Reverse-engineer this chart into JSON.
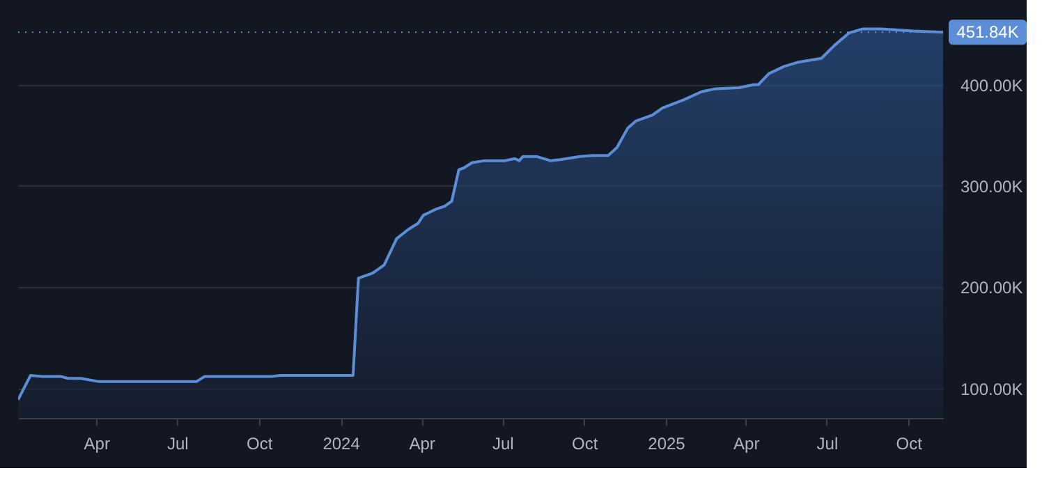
{
  "chart_data": {
    "type": "area",
    "x": [
      "2023-01-03",
      "2023-01-17",
      "2023-01-29",
      "2023-02-20",
      "2023-02-28",
      "2023-03-15",
      "2023-03-21",
      "2023-04-03",
      "2023-05-19",
      "2023-07-23",
      "2023-08-01",
      "2023-10-16",
      "2023-10-25",
      "2024-01-15",
      "2024-01-21",
      "2024-02-06",
      "2024-02-19",
      "2024-03-04",
      "2024-03-17",
      "2024-03-28",
      "2024-04-03",
      "2024-04-17",
      "2024-04-27",
      "2024-05-05",
      "2024-05-13",
      "2024-05-19",
      "2024-05-28",
      "2024-06-11",
      "2024-07-04",
      "2024-07-15",
      "2024-07-20",
      "2024-07-24",
      "2024-08-09",
      "2024-08-24",
      "2024-09-04",
      "2024-09-26",
      "2024-10-10",
      "2024-10-28",
      "2024-11-07",
      "2024-11-19",
      "2024-11-28",
      "2024-12-17",
      "2024-12-28",
      "2025-01-21",
      "2025-02-10",
      "2025-02-26",
      "2025-03-24",
      "2025-04-10",
      "2025-04-15",
      "2025-04-27",
      "2025-05-14",
      "2025-05-29",
      "2025-06-25",
      "2025-07-10",
      "2025-07-26",
      "2025-08-10",
      "2025-09-01",
      "2025-10-06",
      "2025-11-09"
    ],
    "series": [
      {
        "color": "#5b8ed6",
        "values": [
          89000,
          113000,
          112000,
          112000,
          110000,
          110000,
          109000,
          107000,
          107000,
          107000,
          112000,
          112000,
          113000,
          113000,
          209000,
          214000,
          222000,
          248000,
          257000,
          263000,
          271000,
          277000,
          280000,
          285000,
          316000,
          318000,
          323000,
          325000,
          325000,
          327000,
          325000,
          329000,
          329000,
          325000,
          326000,
          329000,
          330000,
          330000,
          338000,
          357000,
          364000,
          370000,
          377000,
          385000,
          393000,
          396000,
          397000,
          400000,
          400000,
          411000,
          418000,
          422000,
          426000,
          439000,
          451000,
          455000,
          455000,
          453000,
          451840
        ]
      }
    ],
    "xlim": [
      "2023-01-03",
      "2025-11-09"
    ],
    "xticks": [
      {
        "value": "2023-04-01",
        "label": "Apr"
      },
      {
        "value": "2023-07-01",
        "label": "Jul"
      },
      {
        "value": "2023-10-01",
        "label": "Oct"
      },
      {
        "value": "2024-01-01",
        "label": "2024"
      },
      {
        "value": "2024-04-01",
        "label": "Apr"
      },
      {
        "value": "2024-07-01",
        "label": "Jul"
      },
      {
        "value": "2024-10-01",
        "label": "Oct"
      },
      {
        "value": "2025-01-01",
        "label": "2025"
      },
      {
        "value": "2025-04-01",
        "label": "Apr"
      },
      {
        "value": "2025-07-01",
        "label": "Jul"
      },
      {
        "value": "2025-10-01",
        "label": "Oct"
      }
    ],
    "ylim": [
      71000,
      483600
    ],
    "yticks": [
      {
        "value": 100000,
        "label": "100.00K"
      },
      {
        "value": 200000,
        "label": "200.00K"
      },
      {
        "value": 300000,
        "label": "300.00K"
      },
      {
        "value": 400000,
        "label": "400.00K"
      }
    ],
    "ref_lines": [
      {
        "axis": "y",
        "value": 451840,
        "label": "451.84K",
        "color": "#5b8ed6",
        "line_style": "dotted"
      }
    ],
    "grid": "y"
  }
}
